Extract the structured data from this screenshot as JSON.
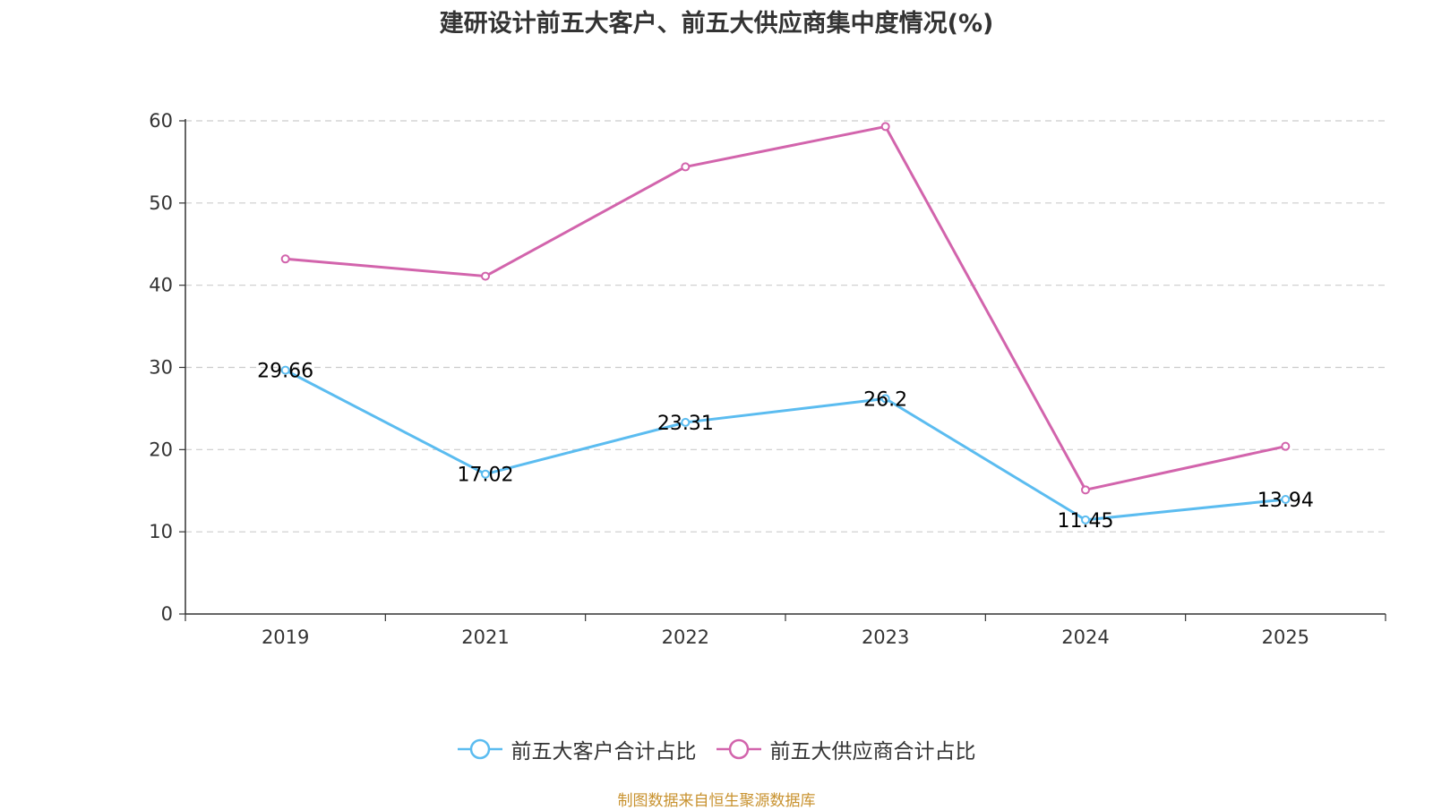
{
  "title": "建研设计前五大客户、前五大供应商集中度情况(%)",
  "source": "制图数据来自恒生聚源数据库",
  "colors": {
    "customers": "#5bbcf0",
    "suppliers": "#d264ac",
    "grid": "#cccccc",
    "axis": "#333333"
  },
  "chart_data": {
    "type": "line",
    "title": "建研设计前五大客户、前五大供应商集中度情况(%)",
    "categories": [
      "2019",
      "2021",
      "2022",
      "2023",
      "2024",
      "2025"
    ],
    "ylim": [
      0,
      60
    ],
    "yticks": [
      0,
      10,
      20,
      30,
      40,
      50,
      60
    ],
    "grid": true,
    "legend_position": "bottom-center",
    "series": [
      {
        "name": "前五大客户合计占比",
        "values": [
          29.66,
          17.02,
          23.31,
          26.2,
          11.45,
          13.94
        ],
        "labels": [
          "29.66",
          "17.02",
          "23.31",
          "26.2",
          "11.45",
          "13.94"
        ],
        "show_labels": true
      },
      {
        "name": "前五大供应商合计占比",
        "values": [
          43.2,
          41.1,
          54.4,
          59.3,
          15.1,
          20.4
        ],
        "show_labels": false
      }
    ]
  }
}
